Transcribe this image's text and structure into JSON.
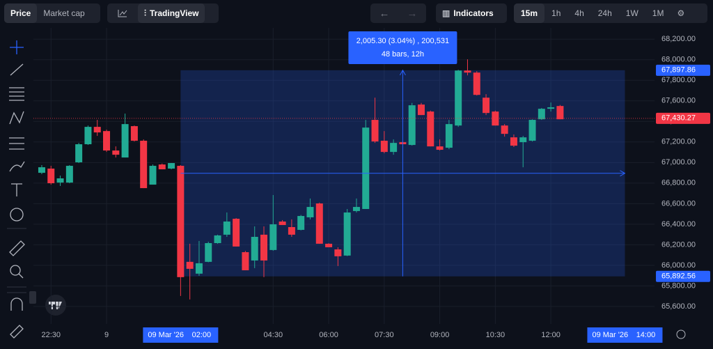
{
  "toolbar": {
    "tabs": [
      "Price",
      "Market cap"
    ],
    "chart_mode": "TradingView",
    "indicators": "Indicators",
    "timeframes": [
      "15m",
      "1h",
      "4h",
      "24h",
      "1W",
      "1M"
    ]
  },
  "chart_data": {
    "type": "candlestick",
    "open": [
      66900,
      66941,
      66805,
      66805,
      67002,
      67178,
      67347,
      67306,
      67117,
      67049,
      67354,
      67212,
      66785,
      66981,
      66941,
      66968,
      66034,
      65919,
      66034,
      66216,
      66298,
      66453,
      66128,
      66047,
      66298,
      66149,
      66426,
      66372,
      66345,
      66467,
      66602,
      66210,
      66155,
      66095,
      66528,
      66548,
      67415,
      67212,
      67103,
      67198,
      67171,
      67564,
      67496,
      67157,
      67144,
      67360,
      67895,
      67875,
      67631,
      67496,
      67360,
      67245,
      67198,
      67212,
      67421,
      67523,
      67550
    ],
    "high": [
      66975,
      66968,
      66873,
      66975,
      67191,
      67360,
      67415,
      67320,
      67157,
      67476,
      67360,
      67225,
      66981,
      66990,
      66995,
      66975,
      66210,
      66237,
      66230,
      66298,
      66514,
      66460,
      66140,
      66379,
      66379,
      66684,
      66440,
      66447,
      66490,
      66650,
      66610,
      66215,
      66176,
      66548,
      66650,
      67415,
      67631,
      67306,
      67225,
      67210,
      67580,
      67580,
      67505,
      67225,
      67415,
      67902,
      68004,
      67889,
      67665,
      67505,
      67374,
      67273,
      67259,
      67420,
      67530,
      67584,
      67560
    ],
    "low": [
      66887,
      66785,
      66772,
      66799,
      66995,
      67171,
      67259,
      67103,
      67049,
      67049,
      67205,
      66751,
      66785,
      66934,
      66934,
      65702,
      65668,
      65898,
      66030,
      66210,
      66277,
      66183,
      65952,
      65973,
      65885,
      66142,
      66392,
      66277,
      66340,
      66447,
      66210,
      66176,
      65993,
      66090,
      66514,
      66548,
      67191,
      67090,
      67076,
      67178,
      67165,
      67462,
      67157,
      67117,
      67130,
      67347,
      67848,
      67652,
      67462,
      67360,
      67252,
      67151,
      66954,
      67205,
      67415,
      67496,
      67421
    ],
    "close": [
      66954,
      66799,
      66846,
      66968,
      67178,
      67347,
      67293,
      67117,
      67076,
      67374,
      67212,
      66751,
      66968,
      66934,
      66995,
      65885,
      65966,
      66020,
      66216,
      66291,
      66426,
      66183,
      65952,
      66277,
      66047,
      66399,
      66392,
      66298,
      66480,
      66568,
      66210,
      66176,
      66088,
      66514,
      66568,
      67340,
      67205,
      67103,
      67191,
      67178,
      67557,
      67462,
      67157,
      67124,
      67374,
      67895,
      67875,
      67658,
      67482,
      67360,
      67279,
      67164,
      67245,
      67415,
      67523,
      67537,
      67421
    ],
    "up_color": "#22ab94",
    "down_color": "#f23645",
    "xlim": [
      -0.9,
      66.2
    ],
    "xticks": [
      {
        "value": 1,
        "label": "22:30"
      },
      {
        "value": 7,
        "label": "9"
      },
      {
        "value": 25,
        "label": "04:30"
      },
      {
        "value": 31,
        "label": "06:00"
      },
      {
        "value": 37,
        "label": "07:30"
      },
      {
        "value": 43,
        "label": "09:00"
      },
      {
        "value": 49,
        "label": "10:30"
      },
      {
        "value": 55,
        "label": "12:00"
      }
    ],
    "ylim": [
      65430,
      68310
    ],
    "yticks": [
      {
        "value": 65600,
        "label": "65,600.00"
      },
      {
        "value": 65800,
        "label": "65,800.00"
      },
      {
        "value": 66000,
        "label": "66,000.00"
      },
      {
        "value": 66200,
        "label": "66,200.00"
      },
      {
        "value": 66400,
        "label": "66,400.00"
      },
      {
        "value": 66600,
        "label": "66,600.00"
      },
      {
        "value": 66800,
        "label": "66,800.00"
      },
      {
        "value": 67000,
        "label": "67,000.00"
      },
      {
        "value": 67200,
        "label": "67,200.00"
      },
      {
        "value": 67400,
        "label": "67,400.00"
      },
      {
        "value": 67600,
        "label": "67,600.00"
      },
      {
        "value": 67800,
        "label": "67,800.00"
      },
      {
        "value": 68000,
        "label": "68,000.00"
      },
      {
        "value": 68200,
        "label": "68,200.00"
      }
    ],
    "last_price": {
      "value": 67430.27,
      "label": "67,430.27"
    },
    "range": {
      "start": {
        "value": 15,
        "date": "09 Mar '26",
        "time": "02:00"
      },
      "end": {
        "value": 63,
        "date": "09 Mar '26",
        "time": "14:00"
      },
      "top": {
        "value": 67897.86,
        "label": "67,897.86"
      },
      "bottom": {
        "value": 65892.56,
        "label": "65,892.56"
      },
      "tooltip": [
        "2,005.30 (3.04%) , 200,531",
        "48 bars, 12h"
      ]
    }
  }
}
